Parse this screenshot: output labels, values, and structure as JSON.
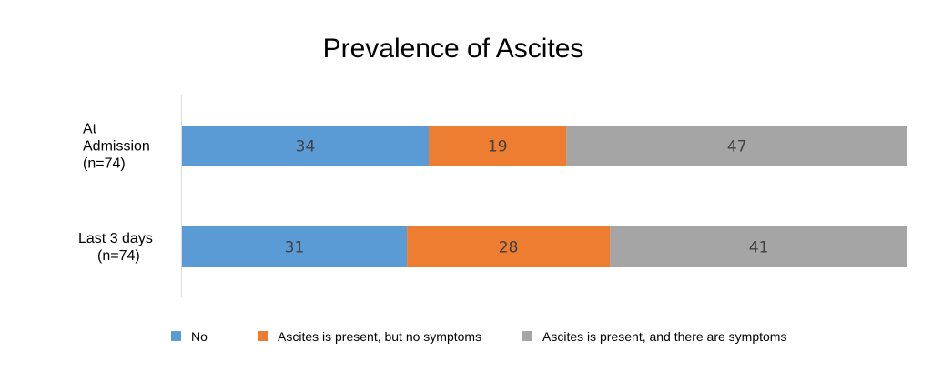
{
  "chart_data": {
    "type": "bar",
    "orientation": "horizontal",
    "stacked": true,
    "title": "Prevalence of Ascites",
    "categories": [
      [
        "At",
        "Admission",
        "(n=74)"
      ],
      [
        "Last 3 days",
        "(n=74)"
      ]
    ],
    "series": [
      {
        "name": "No",
        "color": "#5B9BD5",
        "values": [
          34,
          31
        ]
      },
      {
        "name": "Ascites is present, but no symptoms",
        "color": "#ED7D31",
        "values": [
          19,
          28
        ]
      },
      {
        "name": "Ascites is present, and there are symptoms",
        "color": "#A5A5A5",
        "values": [
          47,
          41
        ]
      }
    ],
    "xlim": [
      0,
      100
    ],
    "grid": false,
    "legend_position": "bottom"
  }
}
